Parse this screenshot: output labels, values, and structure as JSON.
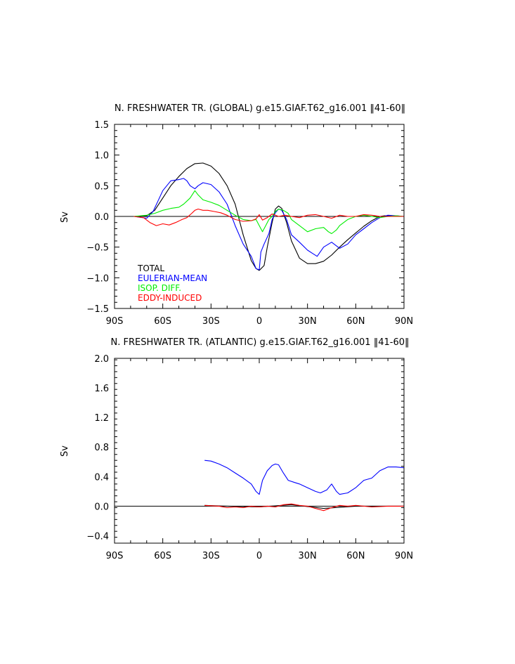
{
  "chart_data": [
    {
      "type": "line",
      "title": "N. FRESHWATER TR. (GLOBAL) g.e15.GIAF.T62_g16.001 ‖41-60‖",
      "xlabel": "",
      "ylabel": "Sv",
      "xlim": [
        -90,
        90
      ],
      "ylim": [
        -1.5,
        1.5
      ],
      "xticks": [
        -90,
        -60,
        -30,
        0,
        30,
        60,
        90
      ],
      "xticklabels": [
        "90S",
        "60S",
        "30S",
        "0",
        "30N",
        "60N",
        "90N"
      ],
      "yticks": [
        -1.5,
        -1.0,
        -0.5,
        0.0,
        0.5,
        1.0,
        1.5
      ],
      "yticklabels": [
        "−1.5",
        "−1.0",
        "−0.5",
        "0.0",
        "0.5",
        "1.0",
        "1.5"
      ],
      "legend_position": "lower-left",
      "series": [
        {
          "name": "TOTAL",
          "color": "#000000",
          "x": [
            -78,
            -70,
            -65,
            -60,
            -55,
            -50,
            -45,
            -40,
            -35,
            -30,
            -25,
            -20,
            -15,
            -10,
            -5,
            -2,
            0,
            3,
            5,
            8,
            10,
            12,
            14,
            17,
            20,
            25,
            30,
            35,
            40,
            45,
            50,
            55,
            60,
            65,
            70,
            75,
            78,
            82,
            86,
            90
          ],
          "y": [
            0,
            0.01,
            0.1,
            0.3,
            0.5,
            0.65,
            0.78,
            0.86,
            0.87,
            0.82,
            0.7,
            0.5,
            0.2,
            -0.3,
            -0.72,
            -0.85,
            -0.88,
            -0.8,
            -0.5,
            -0.1,
            0.12,
            0.17,
            0.13,
            -0.1,
            -0.4,
            -0.68,
            -0.77,
            -0.77,
            -0.73,
            -0.63,
            -0.5,
            -0.38,
            -0.27,
            -0.16,
            -0.07,
            0,
            0.01,
            0.01,
            0,
            0
          ]
        },
        {
          "name": "EULERIAN-MEAN",
          "color": "#0000ff",
          "x": [
            -78,
            -70,
            -66,
            -63,
            -60,
            -55,
            -50,
            -47,
            -45,
            -43,
            -40,
            -38,
            -35,
            -30,
            -25,
            -20,
            -15,
            -10,
            -5,
            -2,
            0,
            1,
            3,
            6,
            8,
            10,
            12,
            14,
            17,
            20,
            25,
            30,
            33,
            36,
            40,
            45,
            50,
            55,
            60,
            65,
            70,
            75,
            80,
            85,
            90
          ],
          "y": [
            0,
            -0.03,
            0.08,
            0.25,
            0.42,
            0.58,
            0.6,
            0.62,
            0.58,
            0.5,
            0.45,
            0.5,
            0.55,
            0.52,
            0.4,
            0.2,
            -0.15,
            -0.45,
            -0.65,
            -0.85,
            -0.87,
            -0.58,
            -0.45,
            -0.28,
            -0.05,
            0.06,
            0.12,
            0.1,
            -0.05,
            -0.3,
            -0.42,
            -0.55,
            -0.6,
            -0.65,
            -0.5,
            -0.42,
            -0.52,
            -0.45,
            -0.3,
            -0.2,
            -0.1,
            -0.02,
            0.02,
            0.01,
            0
          ]
        },
        {
          "name": "ISOP. DIFF.",
          "color": "#00ee00",
          "x": [
            -78,
            -70,
            -65,
            -60,
            -55,
            -50,
            -47,
            -45,
            -43,
            -40,
            -38,
            -35,
            -30,
            -25,
            -20,
            -15,
            -10,
            -5,
            -2,
            0,
            2,
            4,
            6,
            8,
            10,
            12,
            15,
            18,
            20,
            25,
            30,
            35,
            40,
            43,
            45,
            48,
            50,
            55,
            60,
            65,
            70,
            75,
            80,
            85,
            90
          ],
          "y": [
            0,
            0.02,
            0.05,
            0.1,
            0.13,
            0.15,
            0.2,
            0.25,
            0.3,
            0.42,
            0.35,
            0.27,
            0.23,
            0.18,
            0.1,
            0.02,
            -0.05,
            -0.07,
            -0.05,
            -0.15,
            -0.25,
            -0.15,
            -0.05,
            0.0,
            0.08,
            0.12,
            0.1,
            0.05,
            -0.05,
            -0.15,
            -0.25,
            -0.2,
            -0.18,
            -0.25,
            -0.28,
            -0.22,
            -0.15,
            -0.05,
            0.0,
            0.02,
            0.0,
            -0.02,
            0.0,
            0.01,
            0.0
          ]
        },
        {
          "name": "EDDY-INDUCED",
          "color": "#ff0000",
          "x": [
            -78,
            -72,
            -68,
            -64,
            -60,
            -56,
            -52,
            -48,
            -45,
            -42,
            -40,
            -38,
            -35,
            -32,
            -28,
            -24,
            -20,
            -15,
            -10,
            -5,
            -2,
            0,
            2,
            5,
            8,
            12,
            16,
            20,
            25,
            30,
            35,
            40,
            45,
            50,
            55,
            60,
            65,
            70,
            75,
            80,
            85,
            90
          ],
          "y": [
            0,
            -0.02,
            -0.1,
            -0.15,
            -0.12,
            -0.14,
            -0.1,
            -0.05,
            -0.02,
            0.05,
            0.1,
            0.12,
            0.1,
            0.1,
            0.08,
            0.06,
            0.02,
            -0.05,
            -0.08,
            -0.07,
            -0.04,
            0.03,
            -0.06,
            -0.02,
            0.04,
            0.0,
            0.02,
            0.0,
            -0.02,
            0.02,
            0.03,
            0.0,
            -0.03,
            0.02,
            0.0,
            0.0,
            0.03,
            0.02,
            0.0,
            0.0,
            0.0,
            0.0
          ]
        }
      ]
    },
    {
      "type": "line",
      "title": "N. FRESHWATER TR. (ATLANTIC) g.e15.GIAF.T62_g16.001 ‖41-60‖",
      "xlabel": "",
      "ylabel": "Sv",
      "xlim": [
        -90,
        90
      ],
      "ylim": [
        -0.5,
        2.0
      ],
      "xticks": [
        -90,
        -60,
        -30,
        0,
        30,
        60,
        90
      ],
      "xticklabels": [
        "90S",
        "60S",
        "30S",
        "0",
        "30N",
        "60N",
        "90N"
      ],
      "yticks": [
        -0.4,
        0.0,
        0.4,
        0.8,
        1.2,
        1.6,
        2.0
      ],
      "yticklabels": [
        "−0.4",
        "0.0",
        "0.4",
        "0.8",
        "1.2",
        "1.6",
        "2.0"
      ],
      "legend_position": "none",
      "series": [
        {
          "name": "TOTAL",
          "color": "#000000",
          "x": [
            -34,
            -20,
            0,
            20,
            40,
            60,
            90
          ],
          "y": [
            0.01,
            0.0,
            -0.01,
            0.02,
            -0.03,
            0.0,
            0.0
          ]
        },
        {
          "name": "EULERIAN-MEAN",
          "color": "#0000ff",
          "x": [
            -34,
            -30,
            -25,
            -20,
            -15,
            -10,
            -5,
            -2,
            0,
            2,
            5,
            8,
            10,
            12,
            15,
            18,
            22,
            25,
            30,
            35,
            38,
            42,
            45,
            48,
            50,
            55,
            60,
            65,
            70,
            75,
            80,
            85,
            90
          ],
          "y": [
            0.62,
            0.61,
            0.57,
            0.52,
            0.45,
            0.38,
            0.3,
            0.2,
            0.16,
            0.35,
            0.48,
            0.55,
            0.57,
            0.56,
            0.45,
            0.35,
            0.32,
            0.3,
            0.25,
            0.2,
            0.18,
            0.22,
            0.3,
            0.2,
            0.16,
            0.18,
            0.25,
            0.35,
            0.38,
            0.48,
            0.53,
            0.53,
            0.52
          ]
        },
        {
          "name": "EDDY-INDUCED",
          "color": "#ff0000",
          "x": [
            -34,
            -25,
            -20,
            -15,
            -10,
            -5,
            0,
            5,
            10,
            15,
            20,
            25,
            30,
            35,
            40,
            45,
            50,
            55,
            60,
            70,
            80,
            90
          ],
          "y": [
            0.01,
            0.0,
            -0.02,
            -0.01,
            -0.02,
            0.0,
            -0.01,
            0.0,
            -0.01,
            0.02,
            0.03,
            0.01,
            0.0,
            -0.03,
            -0.06,
            -0.02,
            0.01,
            0.0,
            0.01,
            -0.01,
            0.0,
            0.0
          ]
        }
      ]
    }
  ]
}
